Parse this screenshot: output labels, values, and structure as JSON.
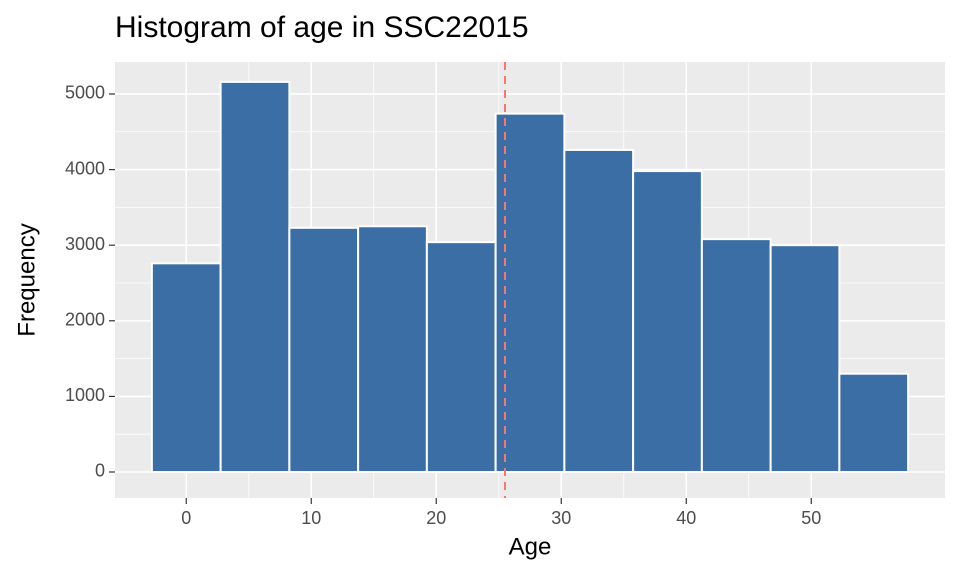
{
  "chart_data": {
    "type": "histogram",
    "title": "Histogram of age in SSC22015",
    "x_label": "Age",
    "y_label": "Frequency",
    "bins": [
      -2.75,
      2.75,
      8.25,
      13.75,
      19.25,
      24.75,
      30.25,
      35.75,
      41.25,
      46.75,
      52.25,
      57.75
    ],
    "values": [
      2760,
      5160,
      3230,
      3250,
      3040,
      4740,
      4260,
      3980,
      3080,
      3000,
      1300
    ],
    "color": "#3a6ea5",
    "xlim": [
      -5.7,
      60.7
    ],
    "ylim": [
      -344,
      5423
    ],
    "xticks": [
      0,
      10,
      20,
      30,
      40,
      50
    ],
    "yticks": [
      0,
      1000,
      2000,
      3000,
      4000,
      5000
    ],
    "grid": true,
    "vline": {
      "value": 25.5,
      "color": "#f8766d"
    }
  }
}
